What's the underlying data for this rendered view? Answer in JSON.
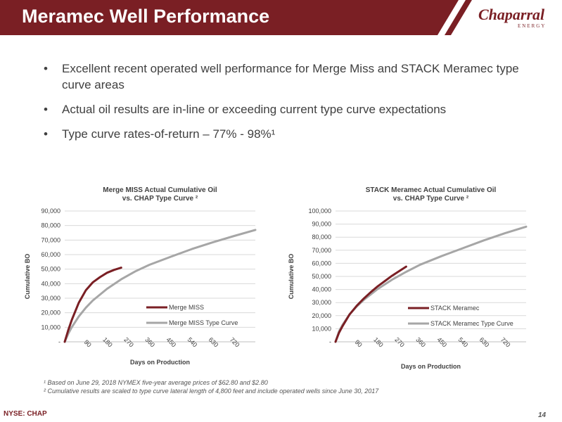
{
  "header": {
    "title": "Meramec Well Performance",
    "logo_main": "Chaparral",
    "logo_sub": "ENERGY"
  },
  "bullets": [
    "Excellent recent operated well performance for Merge Miss and STACK Meramec type curve areas",
    "Actual oil results are in-line or exceeding current type curve expectations",
    "Type curve rates-of-return – 77% - 98%¹"
  ],
  "colors": {
    "brand": "#7a1f24",
    "actual": "#7a1f24",
    "type_curve": "#a6a6a6",
    "grid": "#d9d9d9"
  },
  "chart_data": [
    {
      "type": "line",
      "title": "Merge MISS Actual Cumulative Oil",
      "subtitle": "vs. CHAP Type Curve ²",
      "xlabel": "Days on Production",
      "ylabel": "Cumulative BO",
      "xlim": [
        0,
        810
      ],
      "ylim": [
        0,
        90000
      ],
      "yticks": [
        0,
        10000,
        20000,
        30000,
        40000,
        50000,
        60000,
        70000,
        80000,
        90000
      ],
      "ytick_labels": [
        "-",
        "10,000",
        "20,000",
        "30,000",
        "40,000",
        "50,000",
        "60,000",
        "70,000",
        "80,000",
        "90,000"
      ],
      "xticks": [
        90,
        180,
        270,
        360,
        450,
        540,
        630,
        720
      ],
      "xtick_labels": [
        "90",
        "180",
        "270",
        "360",
        "450",
        "540",
        "630",
        "720"
      ],
      "grid": true,
      "legend": "lower-right",
      "series": [
        {
          "name": "Merge MISS",
          "x": [
            0,
            15,
            30,
            60,
            90,
            120,
            150,
            180,
            210,
            240
          ],
          "y": [
            0,
            8000,
            15000,
            27000,
            35500,
            41000,
            44500,
            47500,
            49500,
            51000
          ]
        },
        {
          "name": "Merge MISS Type Curve",
          "x": [
            0,
            15,
            30,
            60,
            90,
            120,
            180,
            240,
            300,
            360,
            450,
            540,
            630,
            720,
            810
          ],
          "y": [
            0,
            5500,
            10000,
            17500,
            23500,
            28500,
            36500,
            43000,
            48500,
            53000,
            58500,
            63800,
            68500,
            72800,
            77000
          ]
        }
      ]
    },
    {
      "type": "line",
      "title": "STACK Meramec Actual Cumulative Oil",
      "subtitle": "vs. CHAP Type Curve ²",
      "xlabel": "Days on Production",
      "ylabel": "Cumulative BO",
      "xlim": [
        0,
        810
      ],
      "ylim": [
        0,
        100000
      ],
      "yticks": [
        0,
        10000,
        20000,
        30000,
        40000,
        50000,
        60000,
        70000,
        80000,
        90000,
        100000
      ],
      "ytick_labels": [
        "-",
        "10,000",
        "20,000",
        "30,000",
        "40,000",
        "50,000",
        "60,000",
        "70,000",
        "80,000",
        "90,000",
        "100,000"
      ],
      "xticks": [
        90,
        180,
        270,
        360,
        450,
        540,
        630,
        720
      ],
      "xtick_labels": [
        "90",
        "180",
        "270",
        "360",
        "450",
        "540",
        "630",
        "720"
      ],
      "grid": true,
      "legend": "lower-right",
      "series": [
        {
          "name": "STACK Meramec",
          "x": [
            0,
            15,
            30,
            60,
            90,
            120,
            150,
            180,
            210,
            240,
            270,
            300
          ],
          "y": [
            0,
            7000,
            12000,
            21000,
            27500,
            33000,
            38000,
            42500,
            46500,
            50500,
            54000,
            57500
          ]
        },
        {
          "name": "STACK Meramec Type Curve",
          "x": [
            0,
            15,
            30,
            60,
            90,
            120,
            180,
            240,
            300,
            360,
            450,
            540,
            630,
            720,
            810
          ],
          "y": [
            0,
            8000,
            13000,
            21000,
            27000,
            32000,
            40500,
            47500,
            53500,
            59000,
            65500,
            71500,
            77500,
            83000,
            88000
          ]
        }
      ]
    }
  ],
  "footnotes": [
    "¹ Based on June 29, 2018 NYMEX five-year average prices of $62.80 and $2.80",
    "² Cumulative results are scaled to type curve lateral length of 4,800 feet and include operated wells since June 30, 2017"
  ],
  "footer": {
    "ticker": "NYSE: CHAP",
    "page": "14"
  }
}
